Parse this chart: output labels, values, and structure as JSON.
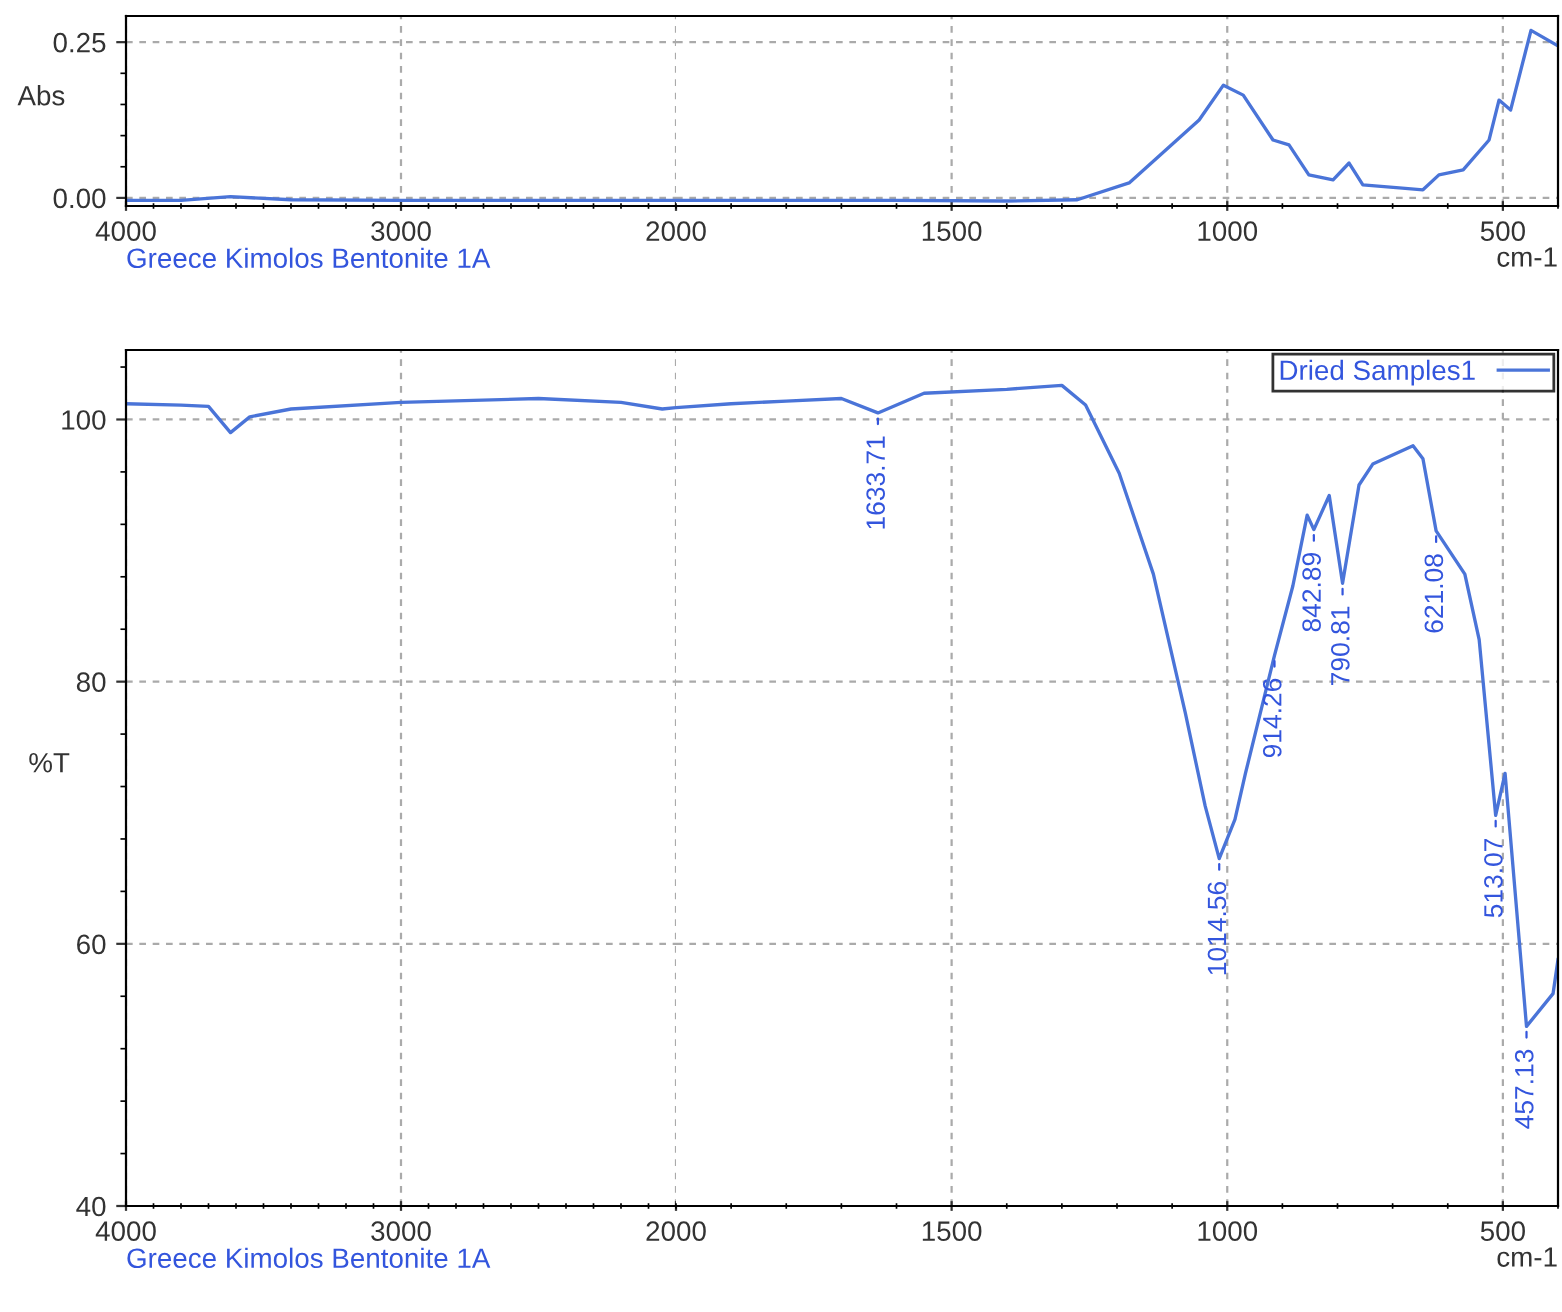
{
  "chart_data": [
    {
      "type": "line",
      "ylabel": "Abs",
      "annotations": [
        "Greece Kimolos Bentonite 1A"
      ],
      "xlim": [
        4000,
        2000
      ],
      "xticks": [
        4000,
        3000,
        2000
      ],
      "ylim": [
        -0.013,
        0.292
      ],
      "yticks": [
        {
          "value": 0,
          "label": "0.00"
        },
        0.25
      ],
      "grid": true,
      "line_style": "solid",
      "series": [
        {
          "color": "#4a74d8",
          "x": [
            4000,
            3800,
            3620,
            3400,
            3000,
            2500,
            2000
          ],
          "values": [
            -0.004,
            -0.004,
            0.002,
            -0.003,
            -0.004,
            -0.004,
            -0.004
          ]
        }
      ]
    },
    {
      "type": "line",
      "xlabel": "cm-1",
      "tick_labels": "x",
      "xlim": [
        2000,
        400
      ],
      "xticks": [
        1500,
        1000,
        500
      ],
      "ylim": [
        -0.013,
        0.292
      ],
      "yticks": [
        0,
        0.25
      ],
      "grid": true,
      "line_style": "solid",
      "series": [
        {
          "color": "#4a74d8",
          "x": [
            2000,
            1600,
            1400,
            1272,
            1178,
            1051,
            1007,
            971,
            917,
            888,
            852,
            808,
            779,
            754,
            688,
            645,
            616,
            572,
            525,
            507,
            486,
            449,
            402
          ],
          "values": [
            -0.004,
            -0.004,
            -0.005,
            -0.003,
            0.024,
            0.125,
            0.181,
            0.165,
            0.093,
            0.085,
            0.037,
            0.029,
            0.056,
            0.021,
            0.016,
            0.013,
            0.037,
            0.045,
            0.093,
            0.157,
            0.141,
            0.269,
            0.245
          ]
        }
      ]
    },
    {
      "type": "line",
      "ylabel": "%T",
      "annotations": [
        "Greece Kimolos Bentonite 1A"
      ],
      "xlim": [
        4000,
        2000
      ],
      "xticks": [
        4000,
        3000,
        2000
      ],
      "ylim": [
        40,
        105.3
      ],
      "yticks": [
        40,
        60,
        80,
        100
      ],
      "grid": true,
      "line_style": "solid",
      "series": [
        {
          "color": "#4a74d8",
          "x": [
            4000,
            3800,
            3700,
            3620,
            3550,
            3400,
            3000,
            2500,
            2200,
            2050,
            2000
          ],
          "values": [
            101.2,
            101.1,
            101.0,
            99.0,
            100.2,
            100.8,
            101.3,
            101.6,
            101.3,
            100.8,
            100.9
          ]
        }
      ]
    },
    {
      "type": "line",
      "xlabel": "cm-1",
      "legend": "top right",
      "tick_labels": "x",
      "annotations": [
        {
          "text": "1633.71",
          "x": 1633.71,
          "y": 100.5
        },
        {
          "text": "1014.56",
          "x": 1014.56,
          "y": 66.5
        },
        {
          "text": "914.26",
          "x": 914.26,
          "y": 82
        },
        {
          "text": "842.89",
          "x": 842.89,
          "y": 91.6
        },
        {
          "text": "790.81",
          "x": 790.81,
          "y": 87.5
        },
        {
          "text": "621.08",
          "x": 621.08,
          "y": 91.5
        },
        {
          "text": "513.07",
          "x": 513.07,
          "y": 69.8
        },
        {
          "text": "457.13",
          "x": 457.13,
          "y": 53.7
        }
      ],
      "xlim": [
        2000,
        400
      ],
      "xticks": [
        1500,
        1000,
        500
      ],
      "ylim": [
        40,
        105.3
      ],
      "yticks": [
        40,
        60,
        80,
        100
      ],
      "grid": true,
      "line_style": "solid",
      "series": [
        {
          "name": "Dried Samples1",
          "color": "#4a74d8",
          "x": [
            2000,
            1900,
            1800,
            1700,
            1633.71,
            1550,
            1400,
            1300,
            1257,
            1196,
            1134,
            1076,
            1040,
            1014.56,
            986,
            967,
            914.26,
            881,
            855,
            842.89,
            815,
            790.81,
            761,
            736,
            663,
            645,
            621.08,
            569,
            543,
            513.07,
            496,
            457.13,
            409,
            400
          ],
          "values": [
            100.9,
            101.2,
            101.4,
            101.6,
            100.5,
            102.0,
            102.3,
            102.6,
            101.1,
            95.9,
            88.2,
            77.6,
            70.5,
            66.5,
            69.5,
            73,
            82,
            87.3,
            92.7,
            91.6,
            94.2,
            87.5,
            95,
            96.6,
            98,
            97,
            91.5,
            88.2,
            83.2,
            69.8,
            73,
            53.7,
            56.2,
            58.8
          ]
        }
      ]
    }
  ]
}
